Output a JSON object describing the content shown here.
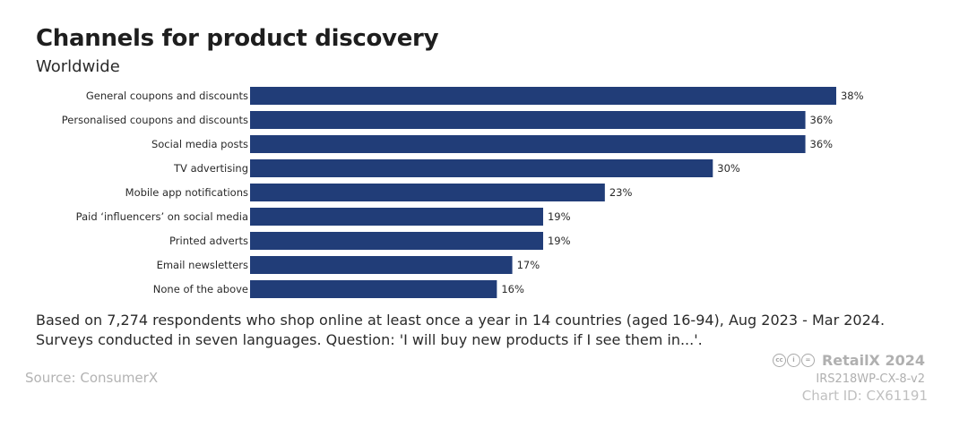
{
  "title": "Channels for product discovery",
  "subtitle": "Worldwide",
  "chart_data": {
    "type": "bar",
    "orientation": "horizontal",
    "categories": [
      "General coupons and discounts",
      "Personalised coupons and discounts",
      "Social media posts",
      "TV advertising",
      "Mobile app notifications",
      "Paid ‘influencers’ on social media",
      "Printed adverts",
      "Email newsletters",
      "None of the above"
    ],
    "values": [
      38,
      36,
      36,
      30,
      23,
      19,
      19,
      17,
      16
    ],
    "labels": [
      "38%",
      "36%",
      "36%",
      "30%",
      "23%",
      "19%",
      "19%",
      "17%",
      "16%"
    ],
    "xlim": [
      0,
      100
    ],
    "grid": false,
    "bar_color": "#213d78"
  },
  "note": "Based on 7,274 respondents who shop online at least once a year in 14 countries (aged 16-94), Aug 2023 - Mar 2024. Surveys conducted in seven languages. Question: 'I will buy new products if I see them in...'.",
  "source": "Source: ConsumerX",
  "brand": "RetailX 2024",
  "code": "IRS218WP-CX-8-v2",
  "chart_id": "Chart ID: CX61191"
}
